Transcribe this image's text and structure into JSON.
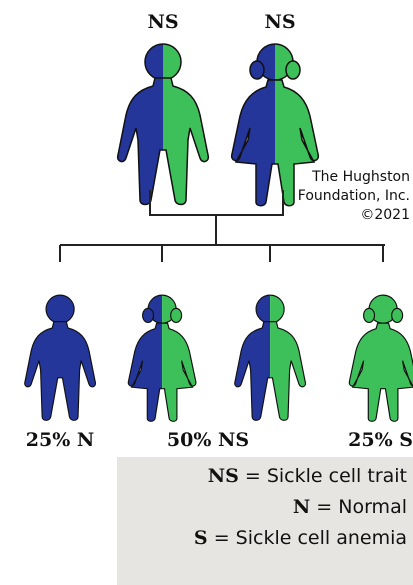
{
  "parents": [
    {
      "label": "NS"
    },
    {
      "label": "NS"
    }
  ],
  "copyright": [
    "The Hughston",
    "Foundation, Inc.",
    "©2021"
  ],
  "children": [
    {
      "label": "25% N"
    },
    {
      "label": "50% NS"
    },
    {
      "label": "25% S"
    }
  ],
  "legend": [
    {
      "key": "NS",
      "text": "= Sickle cell trait"
    },
    {
      "key": "N",
      "text": "= Normal"
    },
    {
      "key": "S",
      "text": "= Sickle cell anemia"
    }
  ]
}
